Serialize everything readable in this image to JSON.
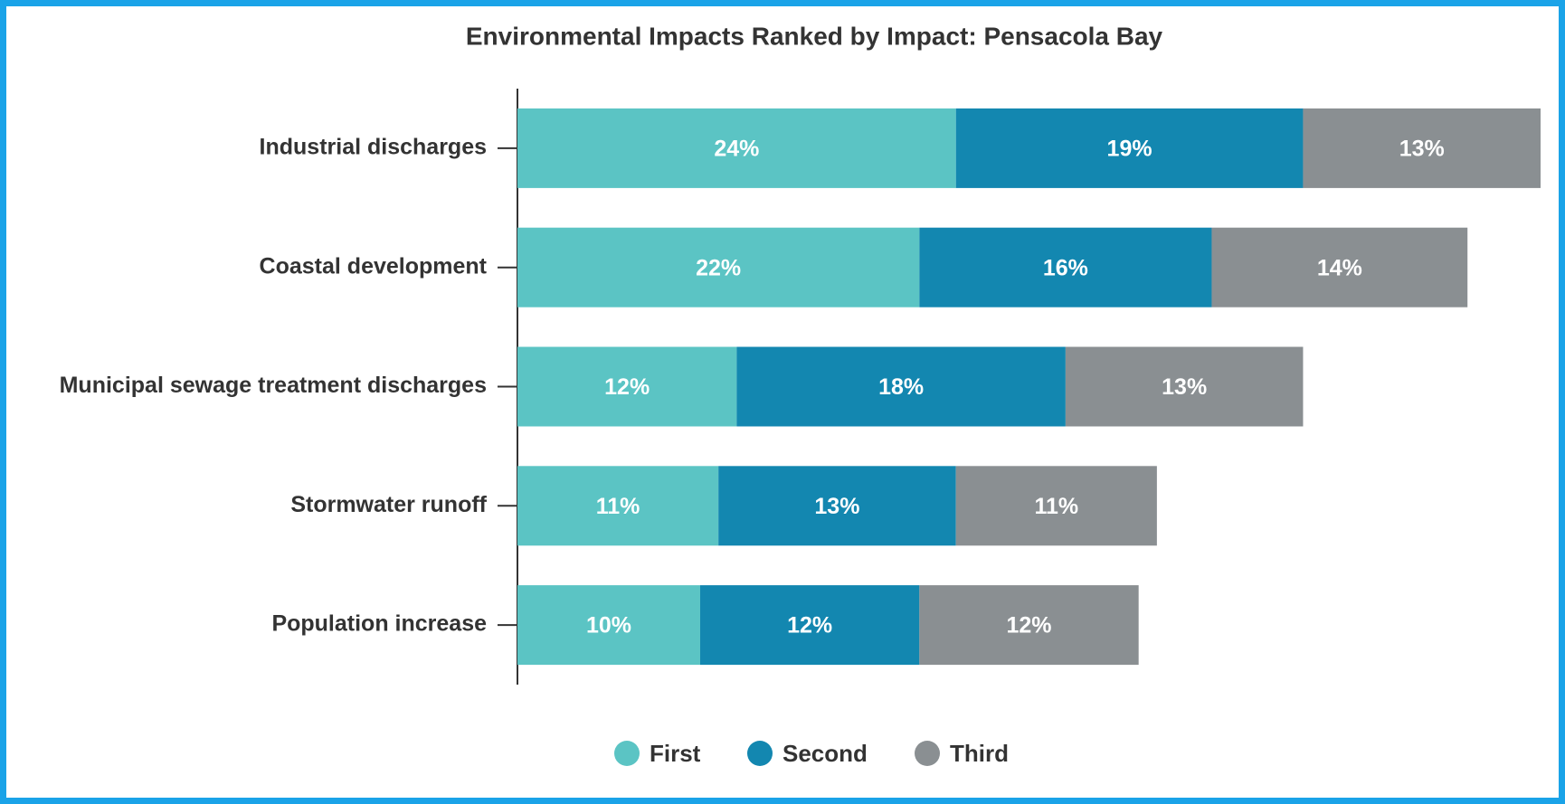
{
  "chart_data": {
    "type": "stacked-barh",
    "title": "Environmental Impacts Ranked by Impact: Pensacola Bay",
    "categories": [
      "Industrial discharges",
      "Coastal development",
      "Municipal sewage treatment discharges",
      "Stormwater runoff",
      "Population increase"
    ],
    "series": [
      {
        "name": "First",
        "color": "#5bc4c4",
        "values": [
          24,
          22,
          12,
          11,
          10
        ],
        "value_labels": [
          "24%",
          "22%",
          "12%",
          "11%",
          "10%"
        ]
      },
      {
        "name": "Second",
        "color": "#1387b0",
        "values": [
          19,
          16,
          18,
          13,
          12
        ],
        "value_labels": [
          "19%",
          "16%",
          "18%",
          "13%",
          "12%"
        ]
      },
      {
        "name": "Third",
        "color": "#8a8f92",
        "values": [
          13,
          14,
          13,
          11,
          12
        ],
        "value_labels": [
          "13%",
          "14%",
          "13%",
          "11%",
          "12%"
        ]
      }
    ],
    "legend": "bottom"
  }
}
